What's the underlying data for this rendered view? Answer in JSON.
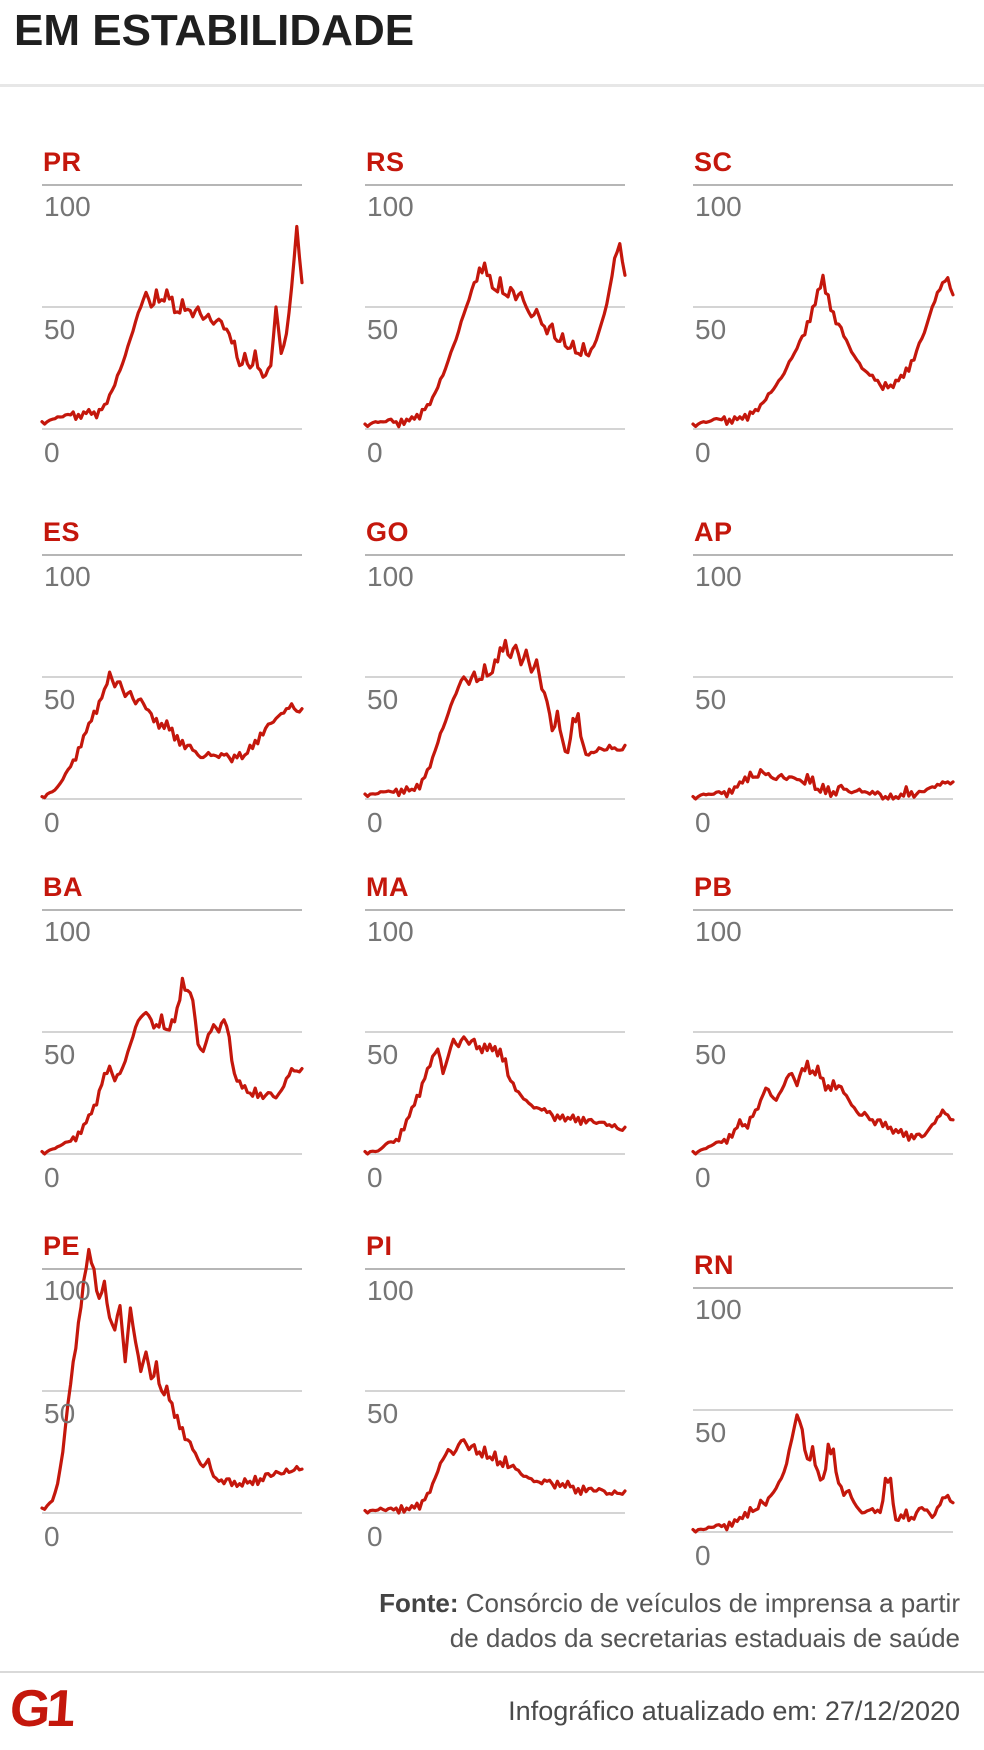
{
  "header": {
    "title": "EM ESTABILIDADE"
  },
  "chart_config": {
    "type": "line",
    "line_color": "#c4170c",
    "label_color": "#c4170c",
    "ticks": [
      "100",
      "50",
      "0"
    ],
    "grid_colors": [
      "#9e9e9e",
      "#c6c6c6",
      "#c6c6c6"
    ],
    "ylim": [
      0,
      115
    ],
    "grid_values": [
      100,
      50,
      0
    ],
    "legend": "none",
    "x_axis": "time (unlabeled)",
    "note_units": "values read from 0-100 axis, estimated from line pixels"
  },
  "chart_data": [
    {
      "type": "line",
      "state": "PR",
      "ylim": [
        0,
        115
      ],
      "y_ticks": [
        100,
        50,
        0
      ],
      "values": [
        3,
        3,
        4,
        5,
        5,
        6,
        7,
        6,
        7,
        8,
        7,
        8,
        10,
        14,
        18,
        24,
        30,
        37,
        44,
        50,
        56,
        50,
        57,
        53,
        57,
        54,
        48,
        53,
        49,
        46,
        50,
        45,
        47,
        43,
        45,
        41,
        39,
        36,
        26,
        31,
        25,
        32,
        24,
        22,
        26,
        50,
        31,
        39,
        58,
        83,
        60
      ]
    },
    {
      "type": "line",
      "state": "RS",
      "ylim": [
        0,
        115
      ],
      "y_ticks": [
        100,
        50,
        0
      ],
      "values": [
        2,
        2,
        3,
        3,
        3,
        4,
        3,
        4,
        4,
        5,
        6,
        8,
        10,
        13,
        17,
        22,
        28,
        34,
        40,
        47,
        53,
        60,
        66,
        68,
        63,
        57,
        62,
        55,
        58,
        53,
        56,
        50,
        46,
        49,
        43,
        39,
        43,
        36,
        39,
        33,
        36,
        31,
        35,
        30,
        34,
        40,
        47,
        57,
        70,
        76,
        63
      ]
    },
    {
      "type": "line",
      "state": "SC",
      "ylim": [
        0,
        115
      ],
      "y_ticks": [
        100,
        50,
        0
      ],
      "values": [
        2,
        2,
        3,
        3,
        4,
        4,
        5,
        4,
        5,
        5,
        6,
        7,
        8,
        10,
        12,
        15,
        18,
        21,
        25,
        29,
        33,
        38,
        44,
        50,
        57,
        63,
        55,
        48,
        43,
        38,
        34,
        30,
        27,
        24,
        22,
        20,
        18,
        19,
        18,
        20,
        22,
        25,
        28,
        32,
        37,
        43,
        50,
        56,
        60,
        62,
        55
      ]
    },
    {
      "type": "line",
      "state": "ES",
      "ylim": [
        0,
        115
      ],
      "y_ticks": [
        100,
        50,
        0
      ],
      "values": [
        1,
        2,
        3,
        5,
        8,
        12,
        16,
        21,
        26,
        31,
        36,
        40,
        45,
        52,
        46,
        48,
        42,
        44,
        39,
        41,
        37,
        35,
        33,
        31,
        32,
        29,
        26,
        24,
        22,
        20,
        18,
        17,
        19,
        18,
        17,
        18,
        17,
        18,
        19,
        18,
        22,
        24,
        27,
        29,
        31,
        33,
        35,
        37,
        39,
        36,
        37
      ]
    },
    {
      "type": "line",
      "state": "GO",
      "ylim": [
        0,
        115
      ],
      "y_ticks": [
        100,
        50,
        0
      ],
      "values": [
        2,
        2,
        2,
        3,
        3,
        3,
        4,
        4,
        5,
        4,
        6,
        8,
        12,
        17,
        23,
        29,
        35,
        41,
        46,
        50,
        47,
        52,
        49,
        55,
        51,
        57,
        62,
        65,
        58,
        63,
        55,
        61,
        52,
        57,
        45,
        40,
        28,
        36,
        24,
        19,
        33,
        35,
        22,
        18,
        19,
        21,
        20,
        22,
        21,
        20,
        22
      ]
    },
    {
      "type": "line",
      "state": "AP",
      "ylim": [
        0,
        115
      ],
      "y_ticks": [
        100,
        50,
        0
      ],
      "values": [
        1,
        1,
        2,
        2,
        2,
        3,
        3,
        4,
        5,
        7,
        9,
        11,
        9,
        12,
        10,
        9,
        8,
        10,
        8,
        9,
        8,
        7,
        10,
        9,
        4,
        6,
        5,
        3,
        5,
        4,
        3,
        3,
        4,
        3,
        2,
        2,
        2,
        1,
        2,
        1,
        2,
        5,
        3,
        2,
        3,
        4,
        5,
        6,
        7,
        7,
        7
      ]
    },
    {
      "type": "line",
      "state": "BA",
      "ylim": [
        0,
        115
      ],
      "y_ticks": [
        100,
        50,
        0
      ],
      "values": [
        1,
        1,
        2,
        3,
        4,
        5,
        7,
        9,
        12,
        16,
        20,
        26,
        33,
        36,
        30,
        33,
        38,
        45,
        52,
        56,
        58,
        55,
        53,
        57,
        51,
        55,
        60,
        72,
        67,
        63,
        45,
        42,
        49,
        53,
        50,
        55,
        48,
        33,
        30,
        28,
        25,
        27,
        25,
        24,
        25,
        23,
        26,
        31,
        35,
        34,
        35
      ]
    },
    {
      "type": "line",
      "state": "MA",
      "ylim": [
        0,
        115
      ],
      "y_ticks": [
        100,
        50,
        0
      ],
      "values": [
        1,
        1,
        1,
        2,
        4,
        5,
        6,
        10,
        14,
        19,
        24,
        29,
        35,
        40,
        43,
        33,
        40,
        47,
        44,
        48,
        45,
        47,
        44,
        45,
        45,
        44,
        43,
        39,
        30,
        26,
        24,
        22,
        20,
        19,
        18,
        17,
        16,
        16,
        16,
        15,
        16,
        15,
        15,
        14,
        13,
        13,
        13,
        12,
        12,
        10,
        11
      ]
    },
    {
      "type": "line",
      "state": "PB",
      "ylim": [
        0,
        115
      ],
      "y_ticks": [
        100,
        50,
        0
      ],
      "values": [
        1,
        1,
        2,
        3,
        4,
        5,
        6,
        8,
        10,
        14,
        12,
        15,
        18,
        22,
        27,
        24,
        22,
        26,
        31,
        33,
        28,
        35,
        38,
        34,
        36,
        31,
        28,
        30,
        28,
        25,
        22,
        19,
        16,
        17,
        14,
        12,
        14,
        13,
        11,
        10,
        10,
        9,
        8,
        8,
        7,
        9,
        12,
        15,
        18,
        16,
        14
      ]
    },
    {
      "type": "line",
      "state": "PE",
      "ylim": [
        0,
        115
      ],
      "y_ticks": [
        100,
        50,
        0
      ],
      "values": [
        2,
        3,
        5,
        12,
        25,
        45,
        62,
        78,
        95,
        108,
        100,
        88,
        95,
        80,
        75,
        85,
        62,
        84,
        70,
        58,
        66,
        55,
        62,
        50,
        52,
        45,
        40,
        35,
        30,
        26,
        22,
        19,
        22,
        15,
        13,
        12,
        14,
        13,
        12,
        14,
        13,
        15,
        14,
        16,
        15,
        17,
        16,
        18,
        17,
        19,
        18
      ]
    },
    {
      "type": "line",
      "state": "PI",
      "ylim": [
        0,
        115
      ],
      "y_ticks": [
        100,
        50,
        0
      ],
      "values": [
        1,
        1,
        1,
        2,
        1,
        2,
        2,
        3,
        2,
        3,
        4,
        5,
        8,
        12,
        17,
        22,
        26,
        24,
        28,
        30,
        26,
        28,
        25,
        27,
        23,
        25,
        21,
        23,
        19,
        18,
        16,
        15,
        14,
        13,
        12,
        13,
        12,
        13,
        12,
        13,
        11,
        10,
        11,
        10,
        9,
        10,
        9,
        8,
        9,
        8,
        9
      ]
    },
    {
      "type": "line",
      "state": "RN",
      "ylim": [
        0,
        115
      ],
      "y_ticks": [
        100,
        50,
        0
      ],
      "values": [
        1,
        1,
        1,
        2,
        2,
        3,
        3,
        4,
        5,
        6,
        8,
        10,
        9,
        13,
        11,
        15,
        18,
        22,
        28,
        38,
        48,
        42,
        30,
        35,
        25,
        22,
        36,
        34,
        20,
        15,
        17,
        12,
        9,
        8,
        9,
        8,
        8,
        22,
        22,
        5,
        7,
        9,
        6,
        8,
        10,
        9,
        6,
        10,
        14,
        15,
        12
      ]
    }
  ],
  "footer": {
    "fonte_label": "Fonte:",
    "fonte_line1": "Consórcio de veículos de imprensa a partir",
    "fonte_line2": "de dados da secretarias estaduais de saúde",
    "updated": "Infográfico atualizado em: 27/12/2020",
    "logo_text": "G1"
  }
}
